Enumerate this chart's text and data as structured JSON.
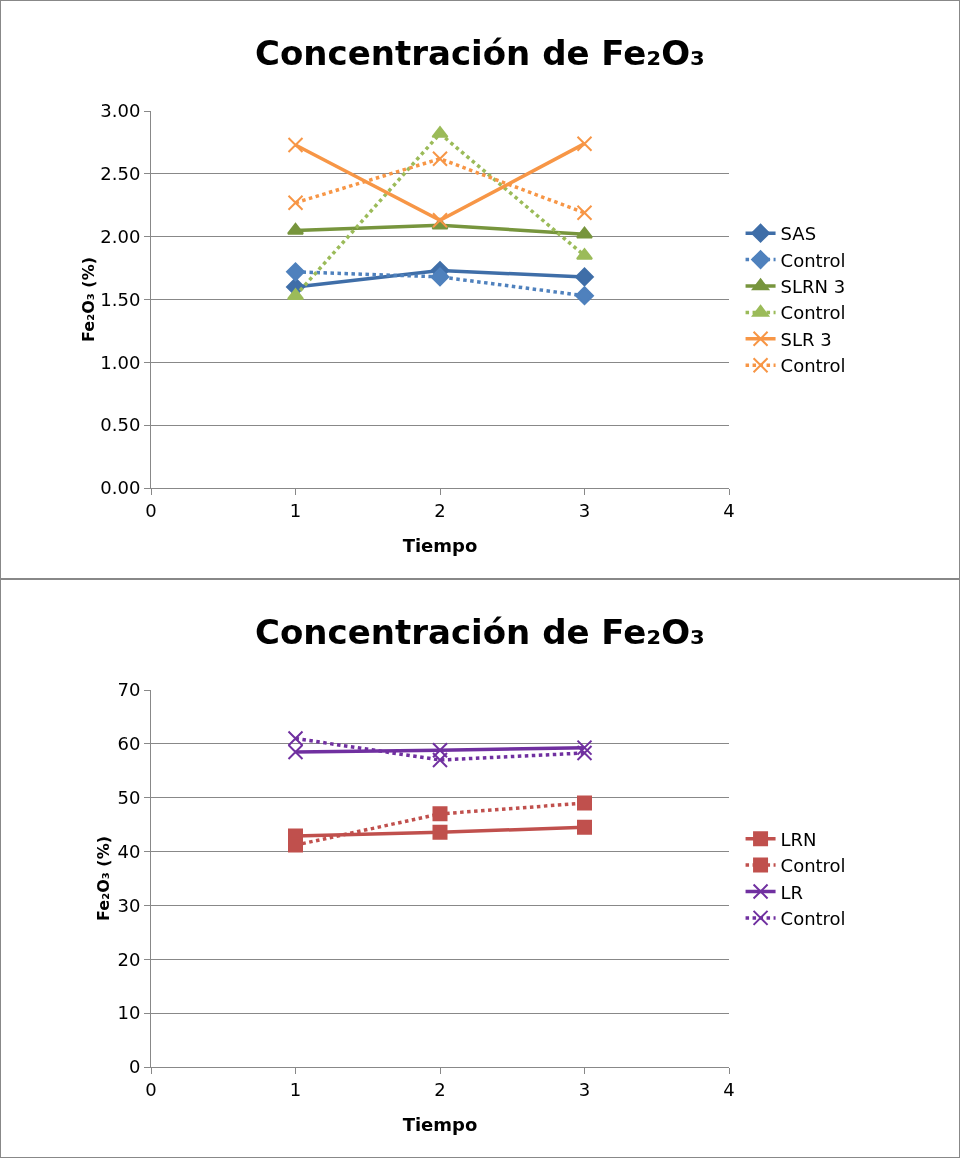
{
  "chart_data": [
    {
      "type": "line",
      "title": "Concentración de Fe₂O₃",
      "xlabel": "Tiempo",
      "ylabel": "Fe₂O₃ (%)",
      "x": [
        1,
        2,
        3
      ],
      "xlim": [
        0,
        4
      ],
      "xticks": [
        0,
        1,
        2,
        3,
        4
      ],
      "ylim": [
        0,
        3
      ],
      "yticks": [
        {
          "value": 0,
          "label": "0.00"
        },
        {
          "value": 0.5,
          "label": "0.50"
        },
        {
          "value": 1,
          "label": "1.00"
        },
        {
          "value": 1.5,
          "label": "1.50"
        },
        {
          "value": 2,
          "label": "2.00"
        },
        {
          "value": 2.5,
          "label": "2.50"
        },
        {
          "value": 3,
          "label": "3.00"
        }
      ],
      "grid": "y",
      "legend": "right",
      "series": [
        {
          "name": "SAS",
          "color": "#3f6ea8",
          "marker": "diamond",
          "line_style": "solid",
          "values": [
            1.6,
            1.73,
            1.68
          ]
        },
        {
          "name": "Control",
          "color": "#4f81bd",
          "marker": "diamond",
          "line_style": "dotted",
          "values": [
            1.72,
            1.68,
            1.53
          ]
        },
        {
          "name": "SLRN 3",
          "color": "#77953d",
          "marker": "triangle",
          "line_style": "solid",
          "values": [
            2.05,
            2.09,
            2.02
          ]
        },
        {
          "name": "Control",
          "color": "#9bbb59",
          "marker": "triangle",
          "line_style": "dotted",
          "values": [
            1.53,
            2.82,
            1.85
          ]
        },
        {
          "name": "SLR 3",
          "color": "#f79646",
          "marker": "cross",
          "line_style": "solid",
          "values": [
            2.73,
            2.13,
            2.74
          ]
        },
        {
          "name": "Control",
          "color": "#f79646",
          "marker": "cross",
          "line_style": "dotted",
          "values": [
            2.27,
            2.62,
            2.19
          ]
        }
      ]
    },
    {
      "type": "line",
      "title": "Concentración de Fe₂O₃",
      "xlabel": "Tiempo",
      "ylabel": "Fe₂O₃ (%)",
      "x": [
        1,
        2,
        3
      ],
      "xlim": [
        0,
        4
      ],
      "xticks": [
        0,
        1,
        2,
        3,
        4
      ],
      "ylim": [
        0,
        70
      ],
      "yticks": [
        0,
        10,
        20,
        30,
        40,
        50,
        60,
        70
      ],
      "grid": "y",
      "legend": "right",
      "series": [
        {
          "name": "LRN",
          "color": "#c0504d",
          "marker": "square",
          "line_style": "solid",
          "values": [
            42.9,
            43.6,
            44.5
          ]
        },
        {
          "name": "Control",
          "color": "#c0504d",
          "marker": "square",
          "line_style": "dotted",
          "values": [
            41.2,
            47.0,
            49.0
          ]
        },
        {
          "name": "LR",
          "color": "#7030a0",
          "marker": "cross",
          "line_style": "solid",
          "values": [
            58.5,
            58.8,
            59.3
          ]
        },
        {
          "name": "Control",
          "color": "#7030a0",
          "marker": "cross",
          "line_style": "dotted",
          "values": [
            61.0,
            57.0,
            58.3
          ]
        }
      ]
    }
  ]
}
